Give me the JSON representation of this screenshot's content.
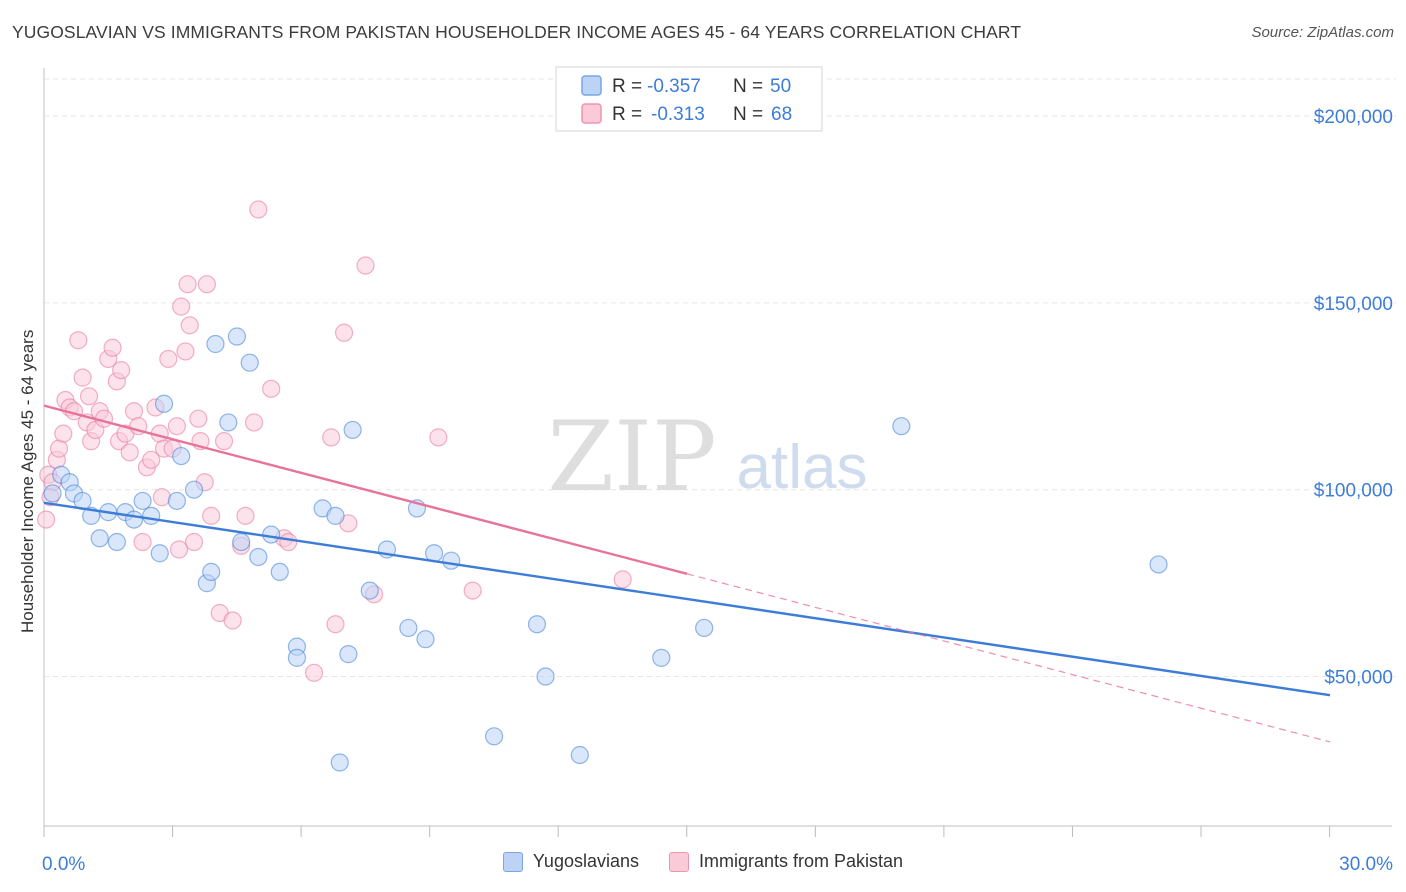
{
  "header": {
    "title": "YUGOSLAVIAN VS IMMIGRANTS FROM PAKISTAN HOUSEHOLDER INCOME AGES 45 - 64 YEARS CORRELATION CHART",
    "source": "Source: ZipAtlas.com"
  },
  "watermark": {
    "zip": "ZIP",
    "atlas": "atlas"
  },
  "chart_data": {
    "type": "scatter",
    "title": "YUGOSLAVIAN VS IMMIGRANTS FROM PAKISTAN HOUSEHOLDER INCOME AGES 45 - 64 YEARS CORRELATION CHART",
    "ylabel": "Householder Income Ages 45 - 64 years",
    "xlabel": "",
    "xlim": [
      0,
      30
    ],
    "ylim": [
      10000,
      215000
    ],
    "x_tick_labels": [
      "0.0%",
      "30.0%"
    ],
    "y_ticks": [
      50000,
      100000,
      150000,
      200000
    ],
    "y_tick_labels": [
      "$50,000",
      "$100,000",
      "$150,000",
      "$200,000"
    ],
    "grid": true,
    "legend_placement": "top-center",
    "stats": [
      {
        "r_label": "R =",
        "r": "-0.357",
        "n_label": "N =",
        "n": "50"
      },
      {
        "r_label": "R =",
        "r": "-0.313",
        "n_label": "N =",
        "n": "68"
      }
    ],
    "series": [
      {
        "name": "Yugoslavians",
        "color": "#3d7dd8",
        "fill": "#bcd3f5",
        "trend": {
          "x_start": 0,
          "y_start": 96500,
          "x_end": 30,
          "y_end": 45000
        },
        "points": [
          [
            0.2,
            99000
          ],
          [
            0.4,
            104000
          ],
          [
            0.6,
            102000
          ],
          [
            0.7,
            99000
          ],
          [
            0.9,
            97000
          ],
          [
            1.1,
            93000
          ],
          [
            1.3,
            87000
          ],
          [
            1.5,
            94000
          ],
          [
            1.7,
            86000
          ],
          [
            1.9,
            94000
          ],
          [
            2.1,
            92000
          ],
          [
            2.3,
            97000
          ],
          [
            2.5,
            93000
          ],
          [
            2.7,
            83000
          ],
          [
            2.8,
            123000
          ],
          [
            3.1,
            97000
          ],
          [
            3.2,
            109000
          ],
          [
            3.5,
            100000
          ],
          [
            3.8,
            75000
          ],
          [
            3.9,
            78000
          ],
          [
            4.0,
            139000
          ],
          [
            4.3,
            118000
          ],
          [
            4.5,
            141000
          ],
          [
            4.6,
            86000
          ],
          [
            4.8,
            134000
          ],
          [
            5.0,
            82000
          ],
          [
            5.3,
            88000
          ],
          [
            5.5,
            78000
          ],
          [
            5.9,
            58000
          ],
          [
            5.9,
            55000
          ],
          [
            6.5,
            95000
          ],
          [
            6.8,
            93000
          ],
          [
            6.9,
            27000
          ],
          [
            7.1,
            56000
          ],
          [
            7.2,
            116000
          ],
          [
            7.6,
            73000
          ],
          [
            8.0,
            84000
          ],
          [
            8.5,
            63000
          ],
          [
            8.7,
            95000
          ],
          [
            8.9,
            60000
          ],
          [
            9.1,
            83000
          ],
          [
            9.5,
            81000
          ],
          [
            10.5,
            34000
          ],
          [
            11.5,
            64000
          ],
          [
            11.7,
            50000
          ],
          [
            12.5,
            29000
          ],
          [
            14.4,
            55000
          ],
          [
            15.4,
            63000
          ],
          [
            20.0,
            117000
          ],
          [
            26.0,
            80000
          ]
        ]
      },
      {
        "name": "Immigrants from Pakistan",
        "color": "#e8739a",
        "fill": "#f9cad8",
        "trend": {
          "x_start": 0,
          "y_start": 122500,
          "x_end": 15,
          "y_end": 77500
        },
        "trend_dashed": {
          "x_start": 15,
          "y_start": 77500,
          "x_end": 30,
          "y_end": 32500
        },
        "points": [
          [
            0.05,
            92000
          ],
          [
            0.1,
            104000
          ],
          [
            0.2,
            102000
          ],
          [
            0.3,
            108000
          ],
          [
            0.35,
            111000
          ],
          [
            0.5,
            124000
          ],
          [
            0.6,
            122000
          ],
          [
            0.7,
            121000
          ],
          [
            0.8,
            140000
          ],
          [
            0.9,
            130000
          ],
          [
            1.0,
            118000
          ],
          [
            1.05,
            125000
          ],
          [
            1.1,
            113000
          ],
          [
            1.2,
            116000
          ],
          [
            1.3,
            121000
          ],
          [
            1.4,
            119000
          ],
          [
            1.5,
            135000
          ],
          [
            1.6,
            138000
          ],
          [
            1.7,
            129000
          ],
          [
            1.75,
            113000
          ],
          [
            1.8,
            132000
          ],
          [
            1.9,
            115000
          ],
          [
            2.0,
            110000
          ],
          [
            2.1,
            121000
          ],
          [
            2.2,
            117000
          ],
          [
            2.3,
            86000
          ],
          [
            2.4,
            106000
          ],
          [
            2.5,
            108000
          ],
          [
            2.6,
            122000
          ],
          [
            2.7,
            115000
          ],
          [
            2.75,
            98000
          ],
          [
            2.8,
            111000
          ],
          [
            2.9,
            135000
          ],
          [
            3.0,
            111000
          ],
          [
            3.1,
            117000
          ],
          [
            3.15,
            84000
          ],
          [
            3.2,
            149000
          ],
          [
            3.3,
            137000
          ],
          [
            3.35,
            155000
          ],
          [
            3.4,
            144000
          ],
          [
            3.5,
            86000
          ],
          [
            3.6,
            119000
          ],
          [
            3.65,
            113000
          ],
          [
            3.75,
            102000
          ],
          [
            3.8,
            155000
          ],
          [
            3.9,
            93000
          ],
          [
            4.1,
            67000
          ],
          [
            4.2,
            113000
          ],
          [
            4.4,
            65000
          ],
          [
            4.6,
            85000
          ],
          [
            4.7,
            93000
          ],
          [
            4.9,
            118000
          ],
          [
            5.0,
            175000
          ],
          [
            5.3,
            127000
          ],
          [
            5.6,
            87000
          ],
          [
            5.7,
            86000
          ],
          [
            6.3,
            51000
          ],
          [
            6.7,
            114000
          ],
          [
            6.8,
            64000
          ],
          [
            7.0,
            142000
          ],
          [
            7.1,
            91000
          ],
          [
            7.5,
            160000
          ],
          [
            7.7,
            72000
          ],
          [
            9.2,
            114000
          ],
          [
            10.0,
            73000
          ],
          [
            13.5,
            76000
          ],
          [
            0.15,
            98000
          ],
          [
            0.45,
            115000
          ]
        ]
      }
    ]
  }
}
